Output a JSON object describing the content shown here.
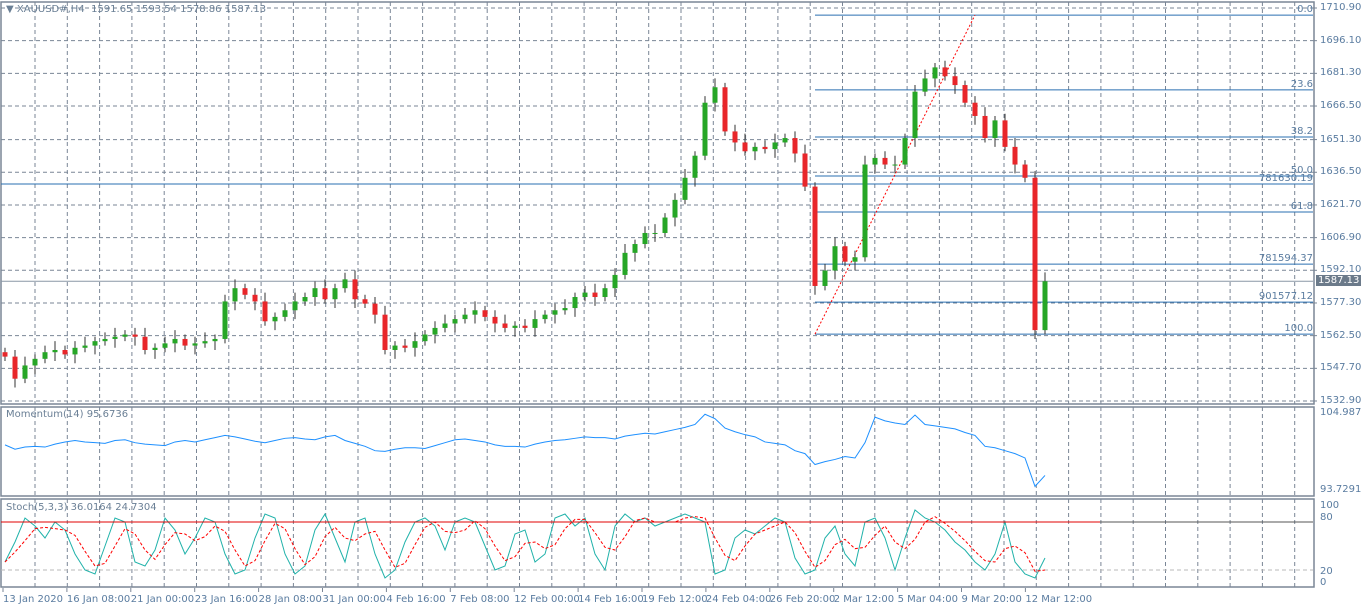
{
  "header": {
    "symbol": "XAUUSD#,H4",
    "open": "1591.65",
    "high": "1593.54",
    "low": "1578.86",
    "close": "1587.13"
  },
  "indicators": {
    "momentum": {
      "label": "Momentum(14)",
      "value": "95.6736",
      "max_label": "104.9871",
      "min_label": "93.7291"
    },
    "stoch": {
      "label": "Stoch(5,3,3)",
      "main": "36.0164",
      "signal": "24.7304",
      "levels": [
        "100",
        "80",
        "20",
        "0"
      ]
    }
  },
  "colors": {
    "bull": "#26a626",
    "bear": "#e8262a",
    "grid": "#7a8696",
    "fib": "#2a6fb0",
    "momentum": "#1e90ff",
    "stoch_main": "#20b2aa",
    "stoch_signal": "#ff0000",
    "trend": "#ff0000"
  },
  "price_axis": {
    "labels": [
      "1710.90",
      "1696.10",
      "1681.30",
      "1666.50",
      "1651.30",
      "1636.50",
      "1621.70",
      "1606.90",
      "1592.10",
      "1577.30",
      "1562.50",
      "1547.70",
      "1532.90"
    ],
    "current": "1587.13"
  },
  "time_axis": {
    "labels": [
      "13 Jan 2020",
      "16 Jan 08:00",
      "21 Jan 00:00",
      "23 Jan 16:00",
      "28 Jan 08:00",
      "31 Jan 00:00",
      "4 Feb 16:00",
      "7 Feb 08:00",
      "12 Feb 00:00",
      "14 Feb 16:00",
      "19 Feb 12:00",
      "24 Feb 04:00",
      "26 Feb 20:00",
      "2 Mar 12:00",
      "5 Mar 04:00",
      "9 Mar 20:00",
      "12 Mar 12:00"
    ]
  },
  "fibonacci": [
    {
      "label": "0.0",
      "price": 1707.7
    },
    {
      "label": "23.6",
      "price": 1673.8
    },
    {
      "label": "38.2",
      "price": 1652.5
    },
    {
      "label": "50.0",
      "price": 1634.8
    },
    {
      "label": "61.8",
      "price": 1618.5
    },
    {
      "label": "100.0",
      "price": 1563.2
    }
  ],
  "hlines": [
    {
      "label": "781630.19",
      "price": 1631.2,
      "full": true
    },
    {
      "label": "781594.37",
      "price": 1594.9,
      "full": false
    },
    {
      "label": "901577.12",
      "price": 1577.7,
      "full": false
    }
  ],
  "chart_data": {
    "type": "candlestick",
    "closes": [
      1553,
      1543,
      1549,
      1552,
      1555,
      1556,
      1554,
      1557,
      1558,
      1560,
      1561,
      1562,
      1563,
      1562,
      1556,
      1557,
      1559,
      1561,
      1558,
      1559,
      1560,
      1561,
      1578,
      1584,
      1581,
      1578,
      1569,
      1571,
      1574,
      1578,
      1580,
      1584,
      1579,
      1584,
      1588,
      1579,
      1577,
      1572,
      1556,
      1558,
      1557,
      1560,
      1563,
      1566,
      1568,
      1570,
      1572,
      1574,
      1571,
      1568,
      1566,
      1567,
      1566,
      1570,
      1572,
      1574,
      1575,
      1580,
      1582,
      1580,
      1584,
      1590,
      1600,
      1604,
      1609,
      1609,
      1616,
      1624,
      1634,
      1644,
      1668,
      1675,
      1655,
      1650,
      1646,
      1648,
      1647,
      1650,
      1652,
      1645,
      1630,
      1585,
      1592,
      1603,
      1596,
      1598,
      1640,
      1643,
      1640,
      1640,
      1652,
      1673,
      1679,
      1684,
      1680,
      1676,
      1668,
      1662,
      1652,
      1660,
      1648,
      1640,
      1634,
      1565,
      1587.13
    ],
    "momentum": [
      100.2,
      99.6,
      99.9,
      100.0,
      99.9,
      100.3,
      100.6,
      100.8,
      100.6,
      100.5,
      100.4,
      100.8,
      100.9,
      100.5,
      100.3,
      100.2,
      100.1,
      100.6,
      100.8,
      100.6,
      100.9,
      101.2,
      101.5,
      101.3,
      101.0,
      100.7,
      100.5,
      100.8,
      101.1,
      101.2,
      101.0,
      100.9,
      101.3,
      101.5,
      100.8,
      100.4,
      100.0,
      99.4,
      99.3,
      99.6,
      99.8,
      99.8,
      99.7,
      100.1,
      100.5,
      100.9,
      101.0,
      100.8,
      100.6,
      100.2,
      100.0,
      100.0,
      99.9,
      100.3,
      100.6,
      100.8,
      100.9,
      101.1,
      101.3,
      101.2,
      101.2,
      101.0,
      101.4,
      101.6,
      101.8,
      101.7,
      102.0,
      102.3,
      102.6,
      103.0,
      104.4,
      103.8,
      102.5,
      102.0,
      101.6,
      101.3,
      100.6,
      100.4,
      100.2,
      99.4,
      99.0,
      97.5,
      97.9,
      98.2,
      98.6,
      98.4,
      100.5,
      104.0,
      103.5,
      103.2,
      103.0,
      104.3,
      103.0,
      102.8,
      102.6,
      102.4,
      101.9,
      101.5,
      100.0,
      99.8,
      99.4,
      99.0,
      98.4,
      94.5,
      96.0
    ],
    "stoch": [
      30,
      55,
      85,
      75,
      60,
      80,
      70,
      40,
      20,
      15,
      50,
      85,
      80,
      30,
      25,
      45,
      85,
      70,
      40,
      60,
      85,
      80,
      40,
      15,
      20,
      60,
      90,
      85,
      40,
      15,
      25,
      70,
      90,
      60,
      30,
      80,
      85,
      40,
      10,
      20,
      55,
      80,
      85,
      75,
      45,
      80,
      85,
      80,
      50,
      20,
      25,
      65,
      70,
      30,
      40,
      85,
      90,
      75,
      85,
      40,
      20,
      75,
      90,
      80,
      85,
      75,
      80,
      85,
      90,
      85,
      80,
      15,
      20,
      60,
      70,
      65,
      75,
      85,
      80,
      35,
      15,
      20,
      60,
      75,
      40,
      25,
      80,
      85,
      60,
      20,
      60,
      95,
      85,
      80,
      70,
      55,
      45,
      30,
      20,
      40,
      80,
      30,
      15,
      10,
      35
    ],
    "momentum_range": [
      93.7291,
      104.9871
    ],
    "price_range": [
      1532.9,
      1710.9
    ]
  }
}
